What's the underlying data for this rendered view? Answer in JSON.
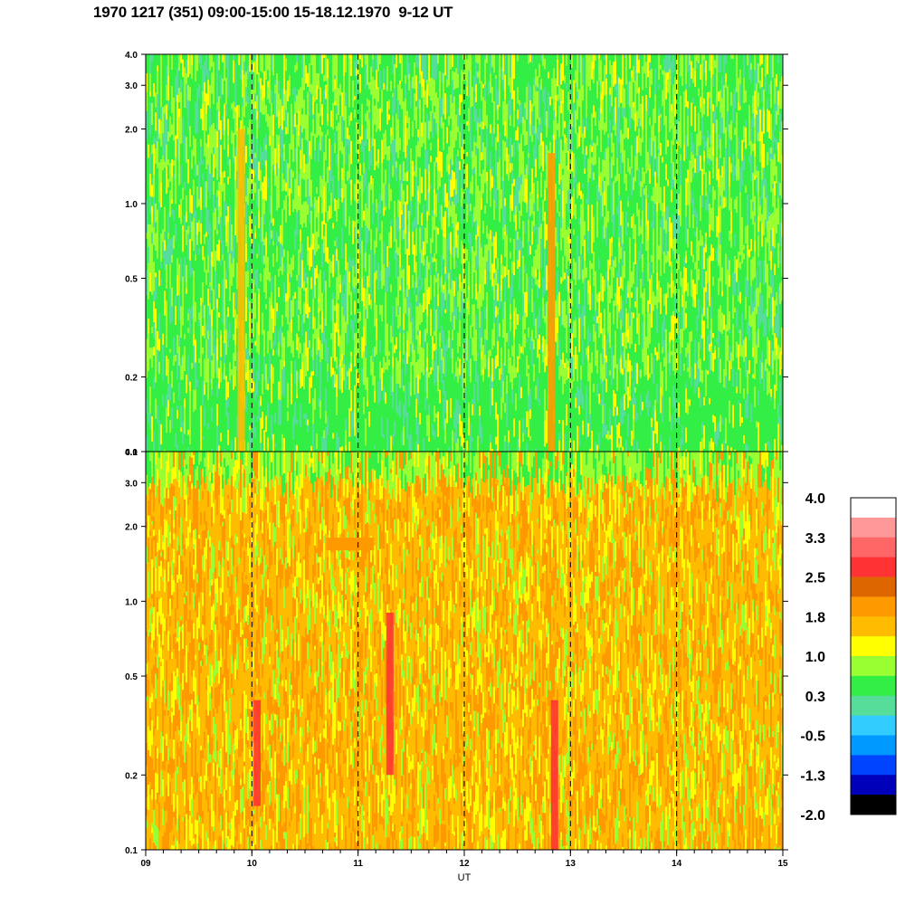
{
  "title": "1970 1217 (351) 09:00-15:00 15-18.12.1970  9-12 UT",
  "chart_data": {
    "type": "heatmap",
    "xlabel": "UT",
    "x_ticks": [
      "09",
      "10",
      "11",
      "12",
      "13",
      "14",
      "15"
    ],
    "xlim": [
      9,
      15
    ],
    "y_scale": "log",
    "ylim": [
      0.1,
      4.0
    ],
    "y_ticks": [
      "0.1",
      "0.2",
      "0.5",
      "1.0",
      "2.0",
      "3.0",
      "4.0"
    ],
    "y_tick_values": [
      0.1,
      0.2,
      0.5,
      1.0,
      2.0,
      3.0,
      4.0
    ],
    "panels": [
      {
        "name": "top",
        "dominant_colors": [
          "#33ee44",
          "#99ff33",
          "#55dd99",
          "#ffff00"
        ],
        "features": [
          {
            "x": 9.9,
            "from_y": 0.1,
            "to_y": 2.0,
            "color": "#ffbb00"
          },
          {
            "x": 12.82,
            "from_y": 0.1,
            "to_y": 1.6,
            "color": "#ff9900"
          }
        ]
      },
      {
        "name": "bottom",
        "dominant_colors": [
          "#ffbb00",
          "#ff9900",
          "#ffff00",
          "#99ff33"
        ],
        "features": [
          {
            "x": 10.05,
            "from_y": 0.15,
            "to_y": 0.4,
            "color": "#ff3333"
          },
          {
            "x": 11.3,
            "from_y": 0.2,
            "to_y": 0.9,
            "color": "#ff3333"
          },
          {
            "x": 12.85,
            "from_y": 0.1,
            "to_y": 0.4,
            "color": "#ff3333"
          },
          {
            "x_from": 10.7,
            "x_to": 11.15,
            "y": 1.7,
            "color": "#ff9900"
          }
        ]
      }
    ],
    "colorbar": {
      "labels": [
        "4.0",
        "3.3",
        "2.5",
        "1.8",
        "1.0",
        "0.3",
        "-0.5",
        "-1.3",
        "-2.0"
      ],
      "colors": [
        "#ffffff",
        "#ff9999",
        "#ff6666",
        "#ff3333",
        "#dd6600",
        "#ff9900",
        "#ffbb00",
        "#ffff00",
        "#99ff33",
        "#33ee44",
        "#55dd99",
        "#33ccff",
        "#0099ff",
        "#0044ff",
        "#0000bb",
        "#000000"
      ]
    },
    "vertical_dashed_lines_at": [
      10,
      11,
      12,
      13,
      14
    ]
  }
}
